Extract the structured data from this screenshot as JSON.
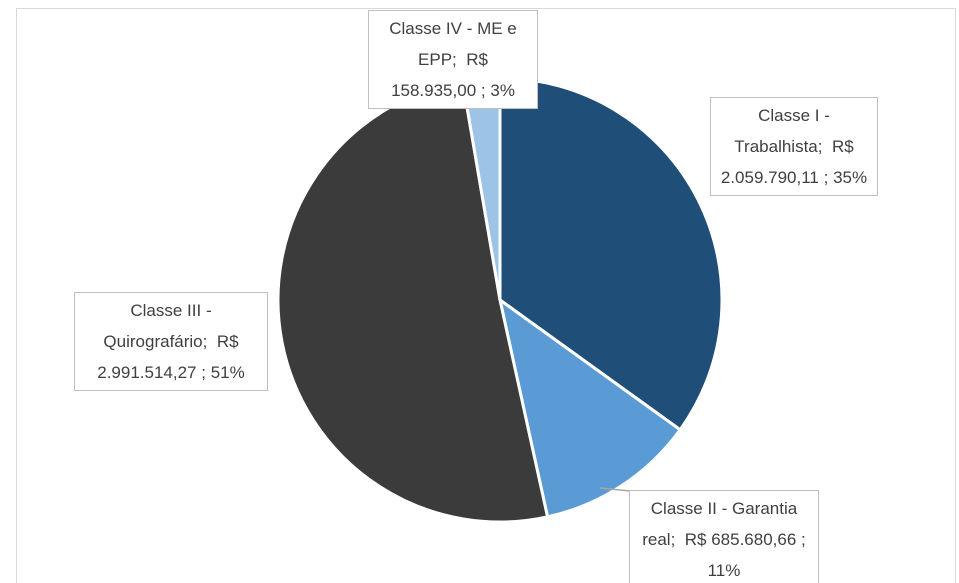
{
  "chart_data": {
    "type": "pie",
    "categories": [
      "Classe I - Trabalhista",
      "Classe II - Garantia real",
      "Classe III - Quirografário",
      "Classe IV - ME e EPP"
    ],
    "values": [
      2059790.11,
      685680.66,
      2991514.27,
      158935.0
    ],
    "value_labels": [
      "R$ 2.059.790,11",
      "R$ 685.680,66",
      "R$ 2.991.514,27",
      "R$ 158.935,00"
    ],
    "percent_labels": [
      "35%",
      "11%",
      "51%",
      "3%"
    ],
    "label_separator": ";",
    "colors": [
      "#1f4e79",
      "#5b9bd5",
      "#3b3b3b",
      "#9dc3e6"
    ]
  }
}
